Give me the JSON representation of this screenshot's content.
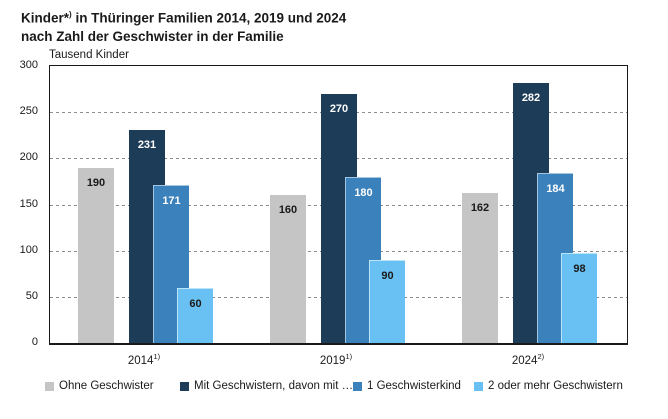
{
  "title": {
    "line1_pre": "Kinder*",
    "line1_sup": ")",
    "line1_rest": " in Thüringer Familien 2014, 2019 und 2024",
    "line2": "nach Zahl der Geschwister in der Familie"
  },
  "chart_data": {
    "type": "bar",
    "title": "Kinder*) in Thüringer Familien 2014, 2019 und 2024 nach Zahl der Geschwister in der Familie",
    "ylabel": "Tausend Kinder",
    "ylim": [
      0,
      300
    ],
    "yticks": [
      0,
      50,
      100,
      150,
      200,
      250,
      300
    ],
    "grid": "horizontal-dashed",
    "legend_position": "bottom",
    "categories": [
      {
        "label": "2014",
        "footnote": "1)"
      },
      {
        "label": "2019",
        "footnote": "1)"
      },
      {
        "label": "2024",
        "footnote": "2)"
      }
    ],
    "series": [
      {
        "name": "Ohne Geschwister",
        "color": "#c5c5c5",
        "label_color": "#1a1a1a",
        "values": [
          190,
          160,
          162
        ]
      },
      {
        "name": "Mit Geschwistern, davon mit …",
        "color": "#1c3c58",
        "label_color": "#ffffff",
        "values": [
          231,
          270,
          282
        ]
      },
      {
        "name": "1 Geschwisterkind",
        "color": "#3b81bb",
        "label_color": "#ffffff",
        "values": [
          171,
          180,
          184
        ]
      },
      {
        "name": "2 oder mehr Geschwistern",
        "color": "#69c0f2",
        "label_color": "#1a1a1a",
        "values": [
          60,
          90,
          98
        ]
      }
    ]
  }
}
